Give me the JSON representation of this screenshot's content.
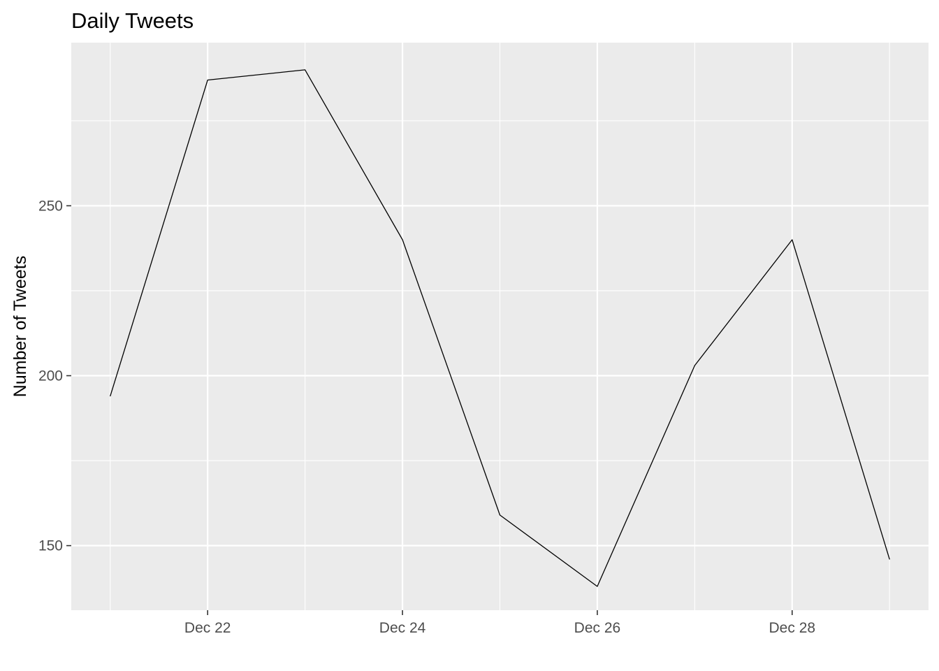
{
  "chart_data": {
    "type": "line",
    "title": "Daily Tweets",
    "xlabel": "",
    "ylabel": "Number of Tweets",
    "x": [
      "Dec 21",
      "Dec 22",
      "Dec 23",
      "Dec 24",
      "Dec 25",
      "Dec 26",
      "Dec 27",
      "Dec 28",
      "Dec 29"
    ],
    "values": [
      194,
      287,
      290,
      240,
      159,
      138,
      203,
      240,
      146
    ],
    "xlim": [
      "Dec 20.6",
      "Dec 29.4"
    ],
    "ylim": [
      131,
      298
    ],
    "x_ticks": [
      {
        "label": "Dec 22",
        "index": 1
      },
      {
        "label": "Dec 24",
        "index": 3
      },
      {
        "label": "Dec 26",
        "index": 5
      },
      {
        "label": "Dec 28",
        "index": 7
      }
    ],
    "y_ticks": [
      150,
      200,
      250
    ],
    "grid": true,
    "line_color": "#000000",
    "panel_color": "#ebebeb",
    "grid_color": "#ffffff"
  }
}
